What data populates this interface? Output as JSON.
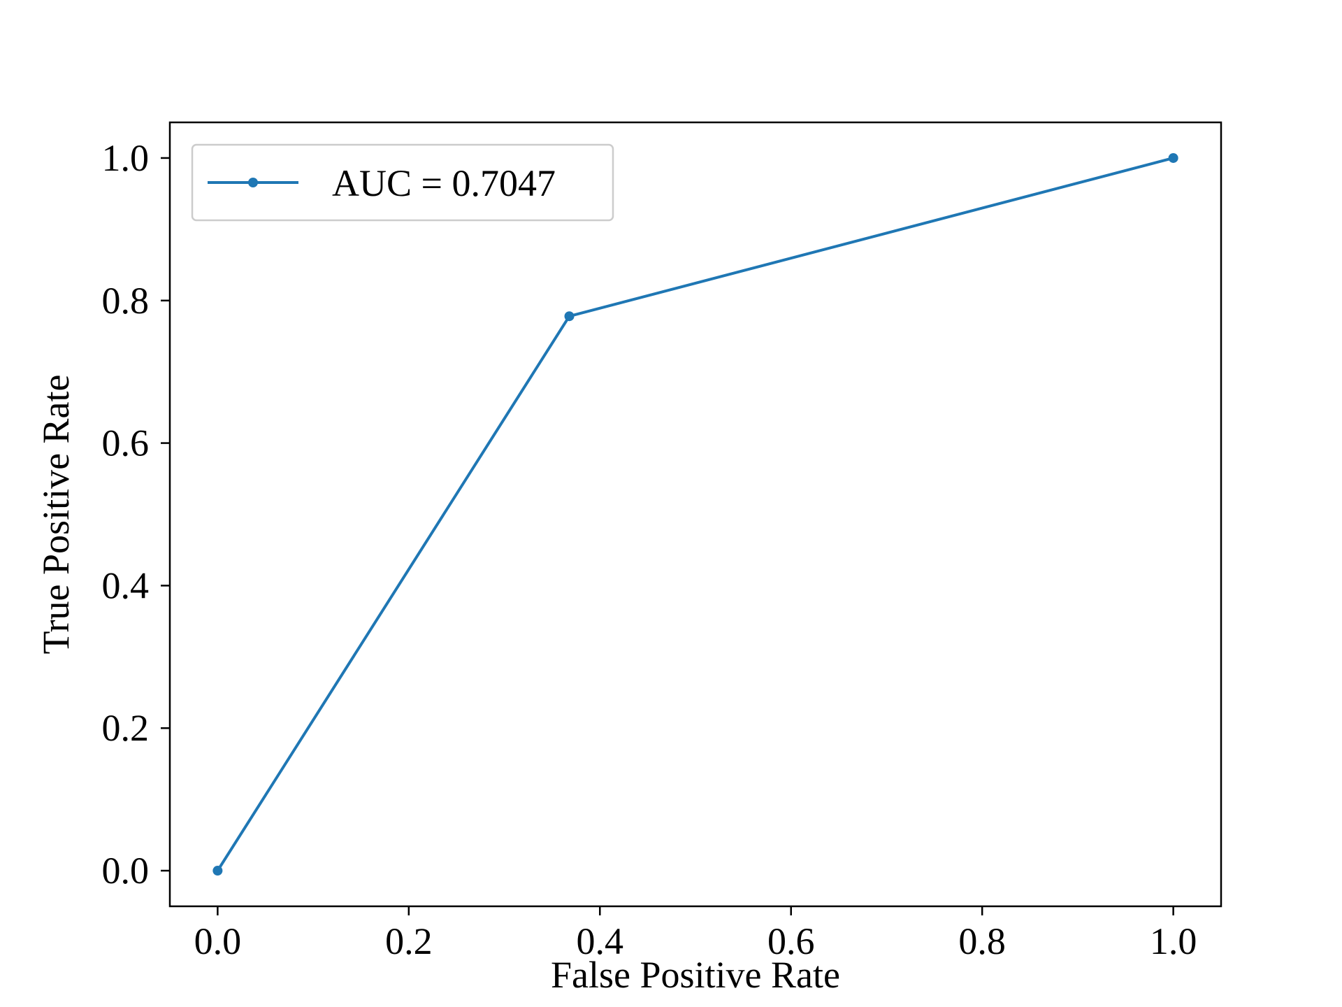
{
  "chart_data": {
    "type": "line",
    "title": "",
    "xlabel": "False Positive Rate",
    "ylabel": "True Positive Rate",
    "xlim": [
      -0.05,
      1.05
    ],
    "ylim": [
      -0.05,
      1.05
    ],
    "x_ticks": [
      "0.0",
      "0.2",
      "0.4",
      "0.6",
      "0.8",
      "1.0"
    ],
    "y_ticks": [
      "0.0",
      "0.2",
      "0.4",
      "0.6",
      "0.8",
      "1.0"
    ],
    "grid": false,
    "legend_position": "upper-left",
    "series": [
      {
        "name": "AUC = 0.7047",
        "color": "#1f77b4",
        "marker": "circle",
        "x": [
          0.0,
          0.368,
          1.0
        ],
        "y": [
          0.0,
          0.778,
          1.0
        ]
      }
    ]
  }
}
